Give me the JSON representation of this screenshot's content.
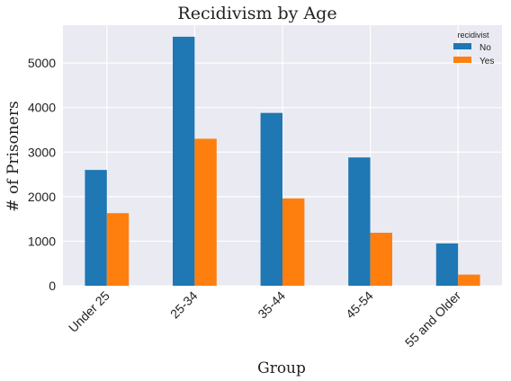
{
  "chart_data": {
    "type": "bar",
    "title": "Recidivism by Age",
    "xlabel": "Group",
    "ylabel": "# of Prisoners",
    "categories": [
      "Under 25",
      "25-34",
      "35-44",
      "45-54",
      "55 and Older"
    ],
    "series": [
      {
        "name": "No",
        "values": [
          2600,
          5590,
          3880,
          2880,
          950
        ]
      },
      {
        "name": "Yes",
        "values": [
          1630,
          3300,
          1960,
          1190,
          250
        ]
      }
    ],
    "ylim": [
      0,
      5850
    ],
    "yticks": [
      0,
      1000,
      2000,
      3000,
      4000,
      5000
    ],
    "grid": true,
    "legend": {
      "title": "recidivist",
      "placement": "top-right"
    },
    "colors": {
      "No": "#1f77b4",
      "Yes": "#ff7f0e",
      "plot_background": "#eaeaf2",
      "grid": "#ffffff"
    }
  }
}
